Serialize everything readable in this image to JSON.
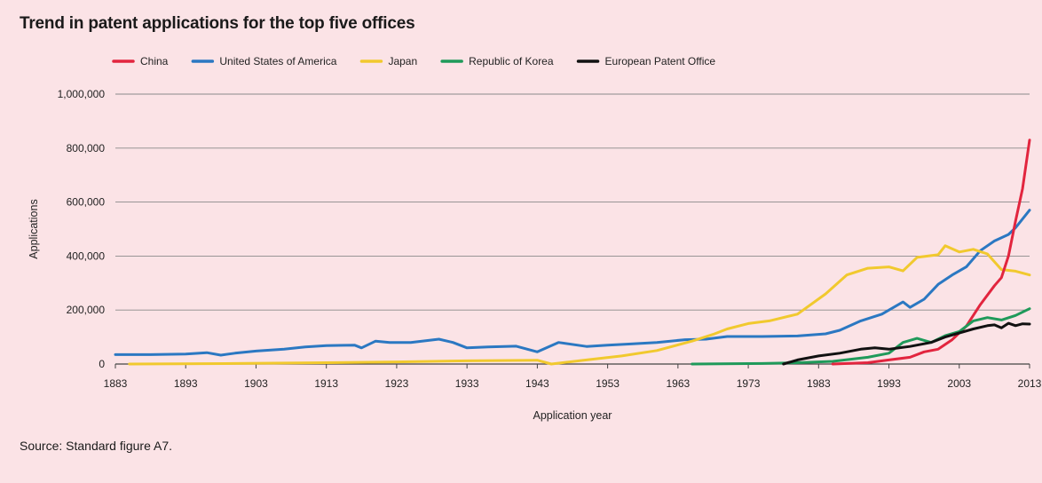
{
  "title": "Trend in patent applications for the top five offices",
  "source": "Source: Standard figure A7.",
  "chart_data": {
    "type": "line",
    "title": "Trend in patent applications for the top five offices",
    "xlabel": "Application year",
    "ylabel": "Applications",
    "xlim": [
      1883,
      2013
    ],
    "ylim": [
      0,
      1000000
    ],
    "x_ticks": [
      "1883",
      "1893",
      "1903",
      "1913",
      "1923",
      "1933",
      "1943",
      "1953",
      "1963",
      "1973",
      "1983",
      "1993",
      "2003",
      "2013"
    ],
    "y_ticks": [
      "0",
      "200,000",
      "400,000",
      "600,000",
      "800,000",
      "1,000,000"
    ],
    "grid": "horizontal",
    "legend_position": "top",
    "series": [
      {
        "name": "United States of America",
        "color": "#2b78c2",
        "points": [
          [
            1883,
            35000
          ],
          [
            1888,
            35000
          ],
          [
            1893,
            37000
          ],
          [
            1896,
            42000
          ],
          [
            1898,
            33000
          ],
          [
            1900,
            40000
          ],
          [
            1903,
            48000
          ],
          [
            1907,
            55000
          ],
          [
            1910,
            63000
          ],
          [
            1913,
            68000
          ],
          [
            1917,
            70000
          ],
          [
            1918,
            60000
          ],
          [
            1920,
            85000
          ],
          [
            1922,
            80000
          ],
          [
            1925,
            80000
          ],
          [
            1929,
            92000
          ],
          [
            1931,
            80000
          ],
          [
            1933,
            60000
          ],
          [
            1936,
            63000
          ],
          [
            1940,
            66000
          ],
          [
            1943,
            45000
          ],
          [
            1946,
            80000
          ],
          [
            1950,
            65000
          ],
          [
            1953,
            70000
          ],
          [
            1956,
            74000
          ],
          [
            1960,
            80000
          ],
          [
            1964,
            90000
          ],
          [
            1967,
            92000
          ],
          [
            1970,
            102000
          ],
          [
            1975,
            102000
          ],
          [
            1980,
            104000
          ],
          [
            1984,
            112000
          ],
          [
            1986,
            125000
          ],
          [
            1989,
            160000
          ],
          [
            1992,
            185000
          ],
          [
            1995,
            230000
          ],
          [
            1996,
            210000
          ],
          [
            1998,
            240000
          ],
          [
            2000,
            295000
          ],
          [
            2002,
            330000
          ],
          [
            2004,
            360000
          ],
          [
            2006,
            420000
          ],
          [
            2008,
            456000
          ],
          [
            2010,
            480000
          ],
          [
            2011,
            505000
          ],
          [
            2013,
            570000
          ]
        ]
      },
      {
        "name": "Japan",
        "color": "#f1c92e",
        "points": [
          [
            1885,
            0
          ],
          [
            1900,
            2000
          ],
          [
            1913,
            5000
          ],
          [
            1923,
            8000
          ],
          [
            1933,
            12000
          ],
          [
            1943,
            14000
          ],
          [
            1945,
            0
          ],
          [
            1950,
            15000
          ],
          [
            1955,
            30000
          ],
          [
            1960,
            50000
          ],
          [
            1965,
            85000
          ],
          [
            1968,
            110000
          ],
          [
            1970,
            130000
          ],
          [
            1973,
            150000
          ],
          [
            1976,
            160000
          ],
          [
            1980,
            185000
          ],
          [
            1984,
            260000
          ],
          [
            1987,
            330000
          ],
          [
            1990,
            355000
          ],
          [
            1993,
            360000
          ],
          [
            1995,
            345000
          ],
          [
            1997,
            395000
          ],
          [
            2000,
            405000
          ],
          [
            2001,
            438000
          ],
          [
            2003,
            415000
          ],
          [
            2005,
            425000
          ],
          [
            2007,
            408000
          ],
          [
            2009,
            350000
          ],
          [
            2011,
            344000
          ],
          [
            2013,
            330000
          ]
        ]
      },
      {
        "name": "China",
        "color": "#e2253e",
        "points": [
          [
            1985,
            0
          ],
          [
            1990,
            5000
          ],
          [
            1993,
            15000
          ],
          [
            1996,
            25000
          ],
          [
            1998,
            45000
          ],
          [
            2000,
            55000
          ],
          [
            2002,
            90000
          ],
          [
            2004,
            140000
          ],
          [
            2006,
            220000
          ],
          [
            2008,
            290000
          ],
          [
            2009,
            320000
          ],
          [
            2010,
            400000
          ],
          [
            2011,
            530000
          ],
          [
            2012,
            650000
          ],
          [
            2013,
            830000
          ]
        ]
      },
      {
        "name": "Republic of Korea",
        "color": "#1f9a5a",
        "points": [
          [
            1965,
            0
          ],
          [
            1975,
            2000
          ],
          [
            1980,
            5000
          ],
          [
            1985,
            10000
          ],
          [
            1990,
            25000
          ],
          [
            1993,
            40000
          ],
          [
            1995,
            80000
          ],
          [
            1997,
            95000
          ],
          [
            1999,
            80000
          ],
          [
            2001,
            105000
          ],
          [
            2003,
            120000
          ],
          [
            2005,
            160000
          ],
          [
            2007,
            172000
          ],
          [
            2009,
            163000
          ],
          [
            2011,
            180000
          ],
          [
            2013,
            205000
          ]
        ]
      },
      {
        "name": "European Patent Office",
        "color": "#111111",
        "points": [
          [
            1978,
            0
          ],
          [
            1980,
            15000
          ],
          [
            1983,
            30000
          ],
          [
            1986,
            40000
          ],
          [
            1989,
            55000
          ],
          [
            1991,
            60000
          ],
          [
            1993,
            55000
          ],
          [
            1996,
            65000
          ],
          [
            1999,
            80000
          ],
          [
            2001,
            100000
          ],
          [
            2003,
            115000
          ],
          [
            2005,
            130000
          ],
          [
            2007,
            142000
          ],
          [
            2008,
            145000
          ],
          [
            2009,
            134000
          ],
          [
            2010,
            151000
          ],
          [
            2011,
            142000
          ],
          [
            2012,
            149000
          ],
          [
            2013,
            148000
          ]
        ]
      }
    ]
  }
}
